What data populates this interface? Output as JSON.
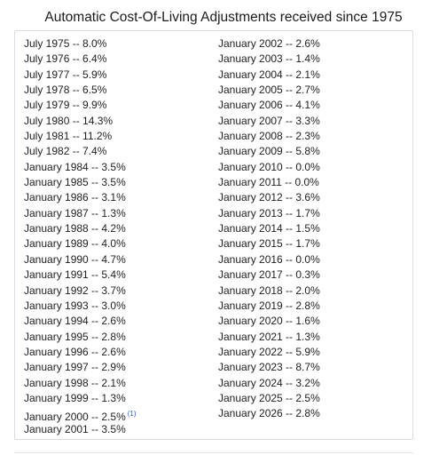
{
  "title": "Automatic Cost-Of-Living Adjustments received since 1975",
  "left_column": [
    "July 1975 -- 8.0%",
    "July 1976 -- 6.4%",
    "July 1977 -- 5.9%",
    "July 1978 -- 6.5%",
    "July 1979 -- 9.9%",
    "July 1980 -- 14.3%",
    "July 1981 -- 11.2%",
    "July 1982 -- 7.4%",
    "January 1984 -- 3.5%",
    "January 1985 -- 3.5%",
    "January 1986 -- 3.1%",
    "January 1987 -- 1.3%",
    "January 1988 -- 4.2%",
    "January 1989 -- 4.0%",
    "January 1990 -- 4.7%",
    "January 1991 -- 5.4%",
    "January 1992 -- 3.7%",
    "January 1993 -- 3.0%",
    "January 1994 -- 2.6%",
    "January 1995 -- 2.8%",
    "January 1996 -- 2.6%",
    "January 1997 -- 2.9%",
    "January 1998 -- 2.1%",
    "January 1999 -- 1.3%",
    "January 2000 -- 2.5%",
    "January 2001 -- 3.5%"
  ],
  "footnote_marker": "(1)",
  "right_column": [
    "January 2002 -- 2.6%",
    "January 2003 -- 1.4%",
    "January 2004 -- 2.1%",
    "January 2005 -- 2.7%",
    "January 2006 -- 4.1%",
    "January 2007 -- 3.3%",
    "January 2008 -- 2.3%",
    "January 2009 -- 5.8%",
    "January 2010 -- 0.0%",
    "January 2011 -- 0.0%",
    "January 2012 -- 3.6%",
    "January 2013 -- 1.7%",
    "January 2014 -- 1.5%",
    "January 2015 -- 1.7%",
    "January 2016 -- 0.0%",
    "January 2017 -- 0.3%",
    "January 2018 -- 2.0%",
    "January 2019 -- 2.8%",
    "January 2020 -- 1.6%",
    "January 2021 -- 1.3%",
    "January 2022 -- 5.9%",
    "January 2023 -- 8.7%",
    "January 2024 -- 3.2%",
    "January 2025 -- 2.5%",
    "January 2026 -- 2.8%"
  ],
  "colors": {
    "text": "#1f1f1f",
    "border": "#d9dde3",
    "footnote_link": "#2f5fa8"
  }
}
